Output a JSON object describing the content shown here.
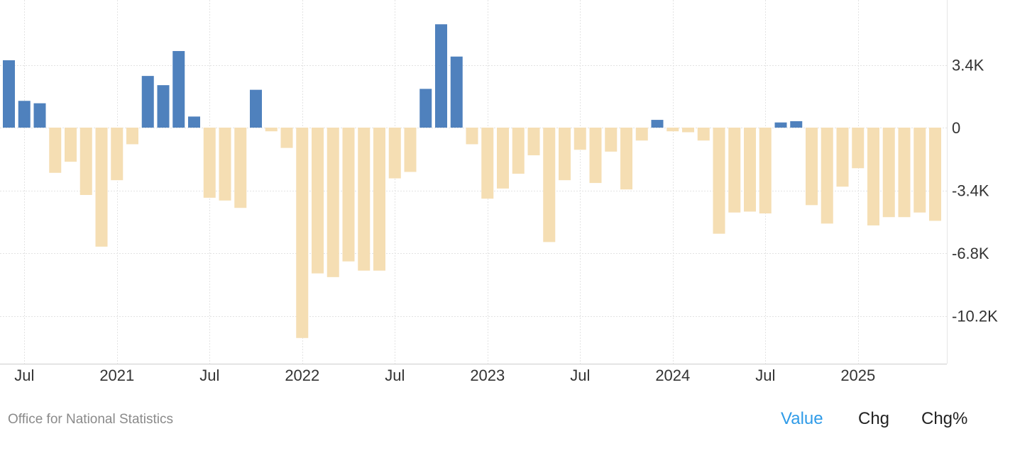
{
  "chart_data": {
    "type": "bar",
    "title": "",
    "xlabel": "",
    "ylabel": "",
    "ylim": [
      -13000,
      6800
    ],
    "yticks": [
      3400,
      0,
      -3400,
      -6800,
      -10200
    ],
    "ytick_labels": [
      "3.4K",
      "0",
      "-3.4K",
      "-6.8K",
      "-10.2K"
    ],
    "xtick_labels": [
      {
        "label": "Jul",
        "x": "2020-07"
      },
      {
        "label": "2021",
        "x": "2021-01"
      },
      {
        "label": "Jul",
        "x": "2021-07"
      },
      {
        "label": "2022",
        "x": "2022-01"
      },
      {
        "label": "Jul",
        "x": "2022-07"
      },
      {
        "label": "2023",
        "x": "2023-01"
      },
      {
        "label": "Jul",
        "x": "2023-07"
      },
      {
        "label": "2024",
        "x": "2024-01"
      },
      {
        "label": "Jul",
        "x": "2024-07"
      },
      {
        "label": "2025",
        "x": "2025-01"
      }
    ],
    "grid": true,
    "positive_color": "#4f81bd",
    "negative_color": "#f5deb3",
    "categories": [
      "2020-06",
      "2020-07",
      "2020-08",
      "2020-09",
      "2020-10",
      "2020-11",
      "2020-12",
      "2021-01",
      "2021-02",
      "2021-03",
      "2021-04",
      "2021-05",
      "2021-06",
      "2021-07",
      "2021-08",
      "2021-09",
      "2021-10",
      "2021-11",
      "2021-12",
      "2022-01",
      "2022-02",
      "2022-03",
      "2022-04",
      "2022-05",
      "2022-06",
      "2022-07",
      "2022-08",
      "2022-09",
      "2022-10",
      "2022-11",
      "2022-12",
      "2023-01",
      "2023-02",
      "2023-03",
      "2023-04",
      "2023-05",
      "2023-06",
      "2023-07",
      "2023-08",
      "2023-09",
      "2023-10",
      "2023-11",
      "2023-12",
      "2024-01",
      "2024-02",
      "2024-03",
      "2024-04",
      "2024-05",
      "2024-06",
      "2024-07",
      "2024-08",
      "2024-09",
      "2024-10",
      "2024-11",
      "2024-12",
      "2025-01",
      "2025-02",
      "2025-03",
      "2025-04",
      "2025-05",
      "2025-06"
    ],
    "values": [
      3650,
      1450,
      1320,
      -2450,
      -1850,
      -3650,
      -6450,
      -2850,
      -900,
      2800,
      2300,
      4150,
      600,
      -3800,
      -3950,
      -4350,
      2050,
      -200,
      -1100,
      -11400,
      -7900,
      -8100,
      -7250,
      -7750,
      -7750,
      -2750,
      -2400,
      2100,
      5600,
      3850,
      -900,
      -3850,
      -3300,
      -2500,
      -1500,
      -6200,
      -2850,
      -1200,
      -3000,
      -1300,
      -3350,
      -700,
      420,
      -200,
      -250,
      -700,
      -5750,
      -4600,
      -4550,
      -4650,
      280,
      350,
      -4200,
      -5200,
      -3200,
      -2200,
      -5300,
      -4850,
      -4850,
      -4600,
      -5050
    ]
  },
  "footer": {
    "source": "Office for National Statistics",
    "tabs": [
      {
        "label": "Value",
        "active": true
      },
      {
        "label": "Chg",
        "active": false
      },
      {
        "label": "Chg%",
        "active": false
      }
    ]
  }
}
